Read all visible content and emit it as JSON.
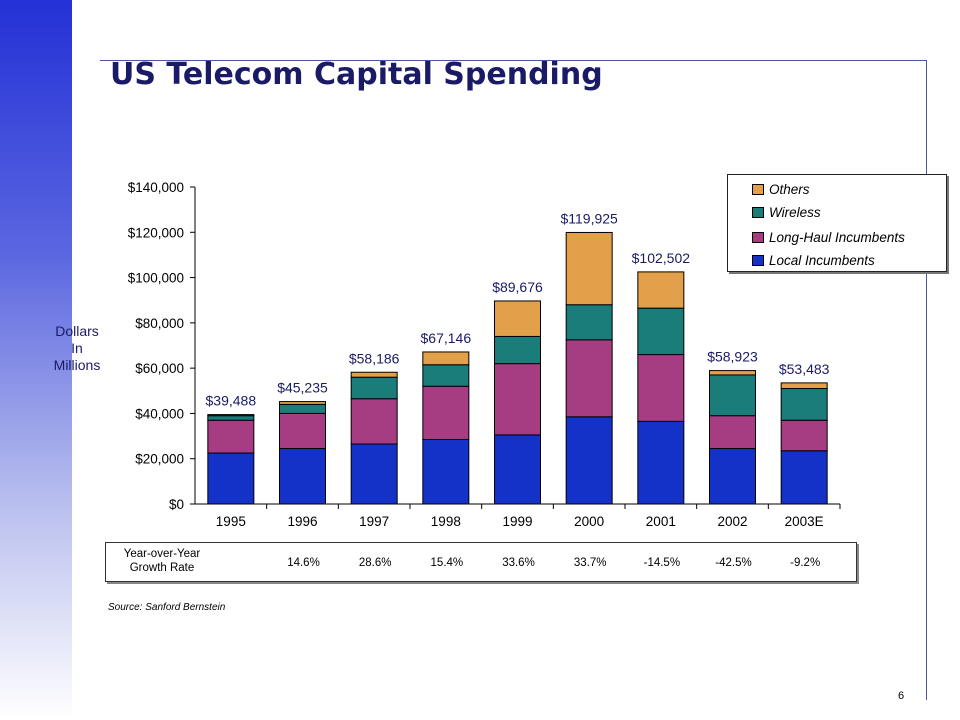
{
  "page": {
    "title": "US Telecom Capital Spending",
    "ylabel_lines": [
      "Dollars",
      "In",
      "Millions"
    ],
    "source": "Source:  Sanford Bernstein",
    "page_number": "6"
  },
  "growth": {
    "label_line1": "Year-over-Year",
    "label_line2": "Growth Rate",
    "values": [
      "",
      "14.6%",
      "28.6%",
      "15.4%",
      "33.6%",
      "33.7%",
      "-14.5%",
      "-42.5%",
      "-9.2%"
    ]
  },
  "colors": {
    "local": "#1432c8",
    "longhaul": "#a63d82",
    "wireless": "#1a7d7a",
    "others": "#e3a04a"
  },
  "chart_data": {
    "type": "bar",
    "stacked": true,
    "categories": [
      "1995",
      "1996",
      "1997",
      "1998",
      "1999",
      "2000",
      "2001",
      "2002",
      "2003E"
    ],
    "series": [
      {
        "name": "Local Incumbents",
        "color_key": "local",
        "values": [
          22500,
          24500,
          26500,
          28500,
          30500,
          38500,
          36500,
          24500,
          23500
        ]
      },
      {
        "name": "Long-Haul Incumbents",
        "color_key": "longhaul",
        "values": [
          14500,
          15500,
          20000,
          23500,
          31500,
          34000,
          29500,
          14500,
          13500
        ]
      },
      {
        "name": "Wireless",
        "color_key": "wireless",
        "values": [
          2000,
          4000,
          9500,
          9500,
          12000,
          15500,
          20500,
          18000,
          14000
        ]
      },
      {
        "name": "Others",
        "color_key": "others",
        "values": [
          488,
          1235,
          2186,
          5646,
          15676,
          31925,
          16002,
          1923,
          2483
        ]
      }
    ],
    "totals": [
      "$39,488",
      "$45,235",
      "$58,186",
      "$67,146",
      "$89,676",
      "$119,925",
      "$102,502",
      "$58,923",
      "$53,483"
    ],
    "legend_order": [
      "Others",
      "Wireless",
      "Long-Haul Incumbents",
      "Local Incumbents"
    ],
    "ylim": [
      0,
      140000
    ],
    "yticks": [
      0,
      20000,
      40000,
      60000,
      80000,
      100000,
      120000,
      140000
    ],
    "ytick_labels": [
      "$0",
      "$20,000",
      "$40,000",
      "$60,000",
      "$80,000",
      "$100,000",
      "$120,000",
      "$140,000"
    ],
    "legend_position": "top-right",
    "grid": false
  }
}
